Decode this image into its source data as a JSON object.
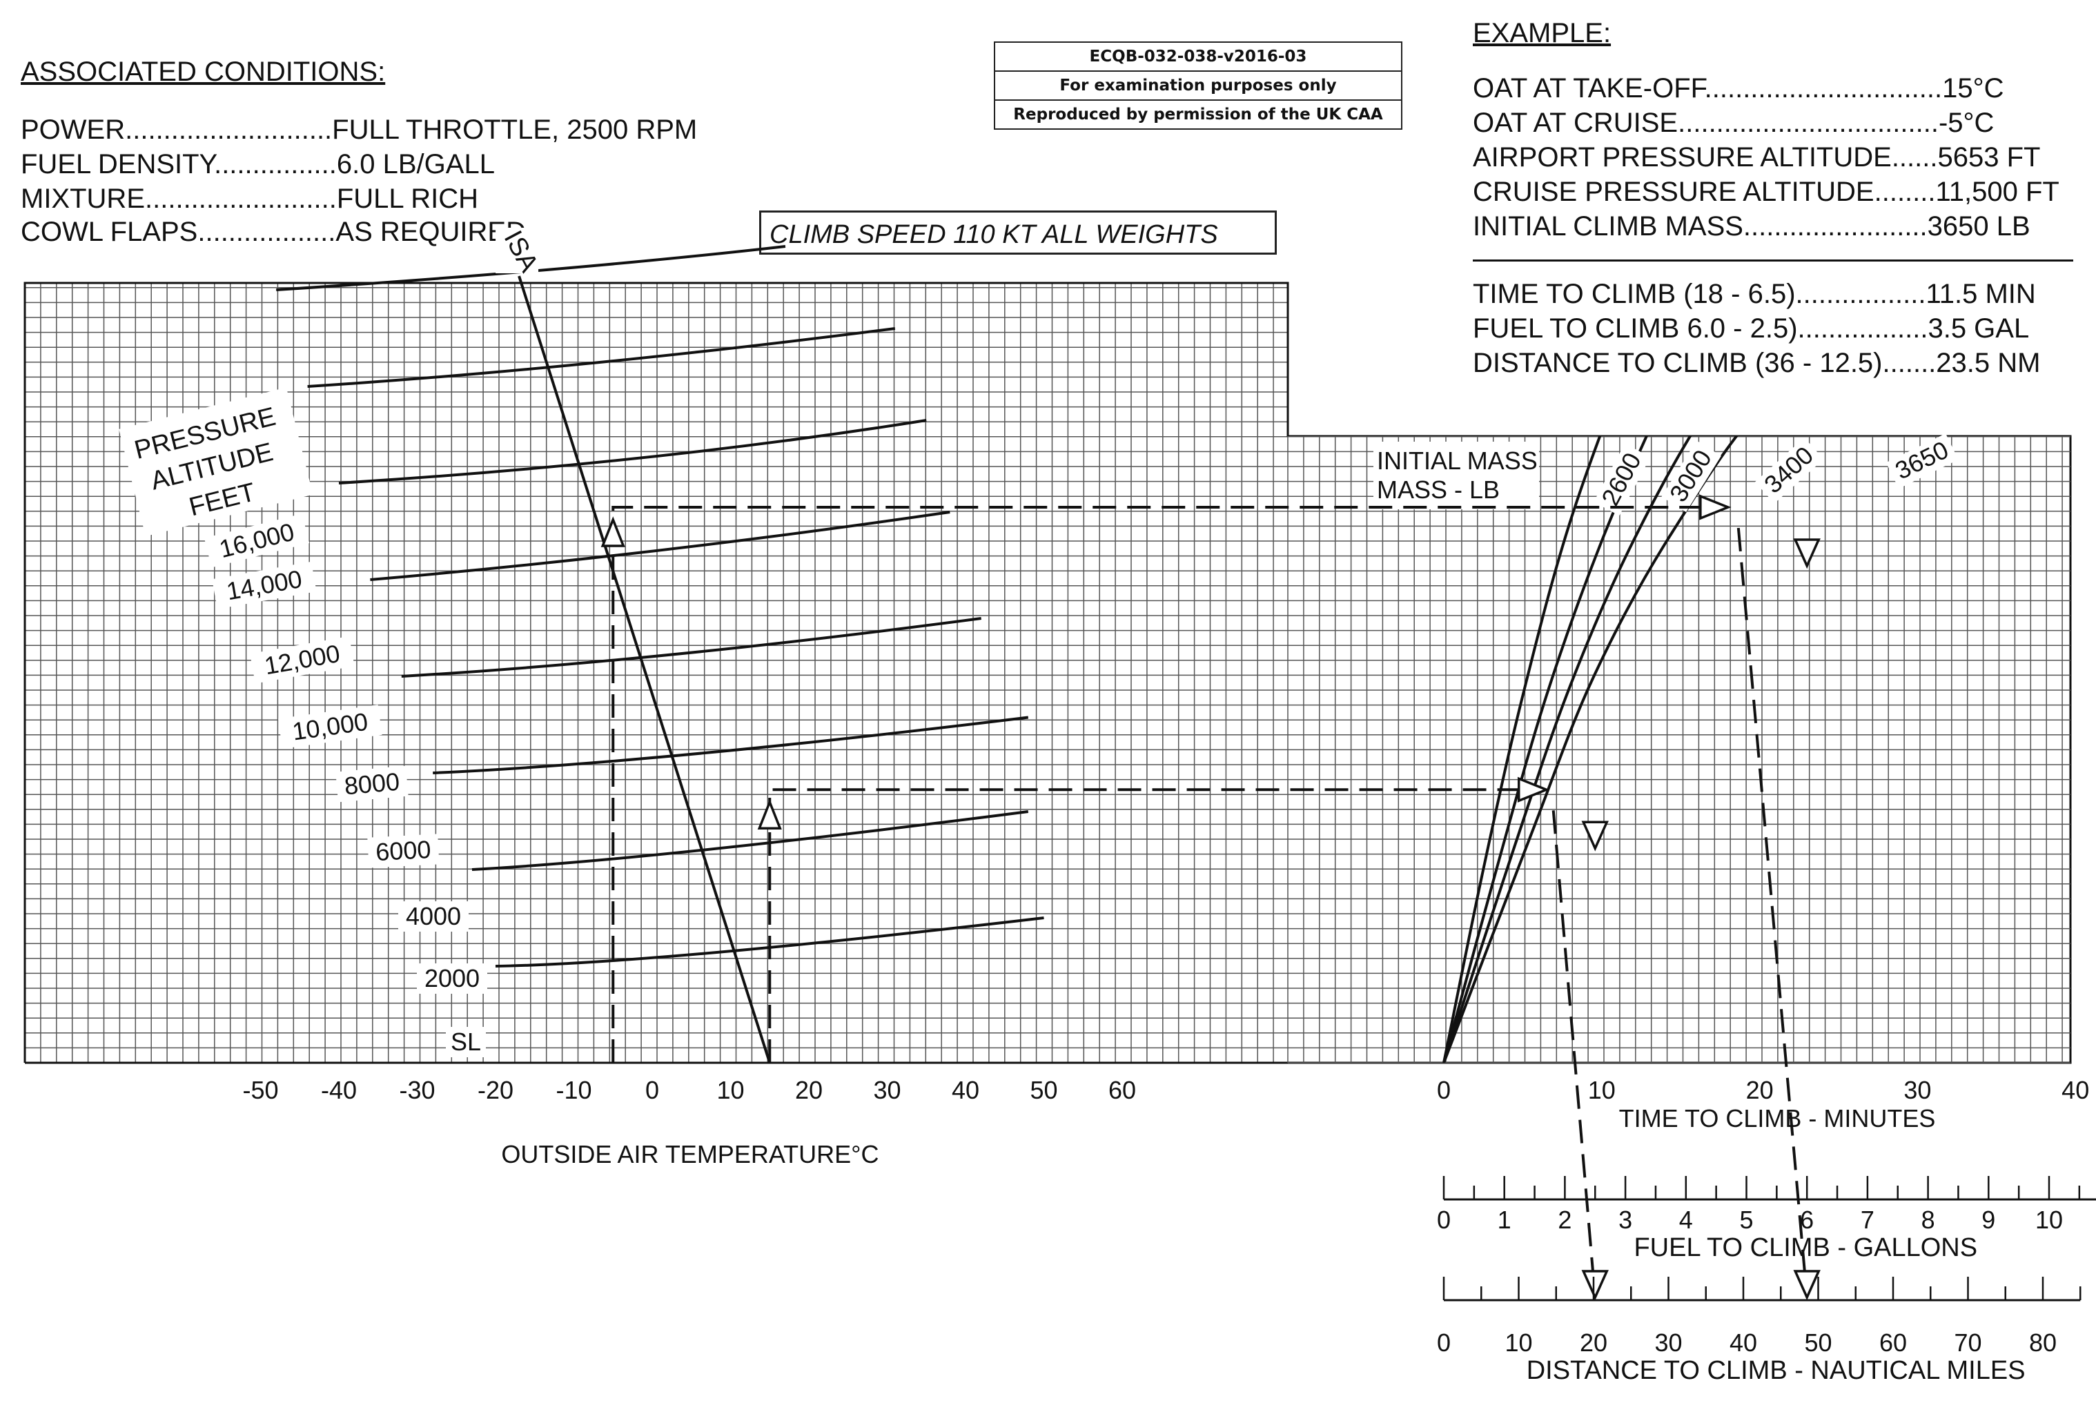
{
  "associated_conditions": {
    "title": "ASSOCIATED CONDITIONS:",
    "lines": [
      "POWER...........................FULL THROTTLE,  2500 RPM",
      "FUEL DENSITY................6.0 LB/GALL",
      "MIXTURE.........................FULL RICH",
      "COWL FLAPS..................AS REQUIRED"
    ]
  },
  "stamp": {
    "code": "ECQB-032-038-v2016-03",
    "line2": "For examination purposes only",
    "line3": "Reproduced by permission of the UK CAA"
  },
  "climb_speed": "CLIMB SPEED  110 KT ALL WEIGHTS",
  "example": {
    "title": "EXAMPLE:",
    "lines": [
      "OAT AT TAKE-OFF...............................15°C",
      "OAT AT CRUISE..................................-5°C",
      "AIRPORT PRESSURE ALTITUDE......5653 FT",
      "CRUISE PRESSURE ALTITUDE........11,500 FT",
      "INITIAL CLIMB MASS........................3650 LB"
    ],
    "results": [
      "TIME TO CLIMB (18 - 6.5).................11.5 MIN",
      "FUEL TO CLIMB 6.0 - 2.5).................3.5 GAL",
      "DISTANCE TO CLIMB (36 - 12.5).......23.5 NM"
    ]
  },
  "colors": {
    "ink": "#111111",
    "grid": "#555555",
    "background": "#ffffff"
  },
  "chart_data": [
    {
      "type": "line",
      "name": "left-panel",
      "ylabel": "PRESSURE ALTITUDE FEET",
      "xlabel": "OUTSIDE AIR TEMPERATURE°C",
      "x_ticks": [
        "-50",
        "-40",
        "-30",
        "-20",
        "-10",
        "0",
        "10",
        "20",
        "30",
        "40",
        "50",
        "60"
      ],
      "xlim": [
        -50,
        60
      ],
      "altitude_labels": [
        "16,000",
        "14,000",
        "12,000",
        "10,000",
        "8000",
        "6000",
        "4000",
        "2000",
        "SL"
      ],
      "isa_label": "ISA",
      "isa_line": [
        {
          "oat": -17,
          "alt": 16000
        },
        {
          "oat": 15,
          "alt": 0
        }
      ],
      "altitude_lines": [
        {
          "alt": 16000,
          "points": [
            [
              -48,
              16000
            ],
            [
              -10,
              16400
            ],
            [
              17,
              16900
            ]
          ]
        },
        {
          "alt": 14000,
          "points": [
            [
              -44,
              14000
            ],
            [
              -10,
              14350
            ],
            [
              31,
              15200
            ]
          ]
        },
        {
          "alt": 12000,
          "points": [
            [
              -40,
              12000
            ],
            [
              0,
              12400
            ],
            [
              35,
              13300
            ]
          ]
        },
        {
          "alt": 10000,
          "points": [
            [
              -36,
              10000
            ],
            [
              0,
              10500
            ],
            [
              38,
              11400
            ]
          ]
        },
        {
          "alt": 8000,
          "points": [
            [
              -32,
              8000
            ],
            [
              0,
              8300
            ],
            [
              42,
              9200
            ]
          ]
        },
        {
          "alt": 6000,
          "points": [
            [
              -28,
              6000
            ],
            [
              0,
              6200
            ],
            [
              48,
              7150
            ]
          ]
        },
        {
          "alt": 4000,
          "points": [
            [
              -23,
              4000
            ],
            [
              0,
              4200
            ],
            [
              48,
              5200
            ]
          ]
        },
        {
          "alt": 2000,
          "points": [
            [
              -20,
              2000
            ],
            [
              0,
              2050
            ],
            [
              50,
              3000
            ]
          ]
        }
      ],
      "example_paths": [
        {
          "oat": -5,
          "alt_from": 0,
          "alt_to": 11500
        },
        {
          "oat": 15,
          "alt_from": 0,
          "alt_to": 5653
        }
      ]
    },
    {
      "type": "line",
      "name": "right-panel",
      "legend_title": "INITIAL MASS - LB",
      "xlabel": "TIME  TO CLIMB - MINUTES",
      "x_ticks": [
        "0",
        "10",
        "20",
        "30",
        "40"
      ],
      "xlim": [
        0,
        40
      ],
      "series": [
        {
          "name": "2600",
          "points": [
            [
              0,
              0
            ],
            [
              2.5,
              4000
            ],
            [
              5,
              7600
            ],
            [
              8,
              11200
            ],
            [
              12,
              14800
            ],
            [
              14.5,
              16800
            ]
          ]
        },
        {
          "name": "3000",
          "points": [
            [
              0,
              0
            ],
            [
              3.5,
              4200
            ],
            [
              6.5,
              7600
            ],
            [
              10,
              10800
            ],
            [
              14,
              13800
            ],
            [
              18.5,
              16800
            ]
          ]
        },
        {
          "name": "3400",
          "points": [
            [
              0,
              0
            ],
            [
              4.5,
              4500
            ],
            [
              8,
              7800
            ],
            [
              12,
              10800
            ],
            [
              17,
              13700
            ],
            [
              24,
              16800
            ]
          ]
        },
        {
          "name": "3650",
          "points": [
            [
              0,
              0
            ],
            [
              5.5,
              4700
            ],
            [
              9.5,
              8000
            ],
            [
              14.5,
              11000
            ],
            [
              21,
              13900
            ],
            [
              30,
              16000
            ],
            [
              40,
              16800
            ]
          ]
        }
      ],
      "example_points": [
        {
          "time": 6.5,
          "alt": 5653
        },
        {
          "time": 18,
          "alt": 11500
        }
      ]
    },
    {
      "type": "scale",
      "name": "fuel-scale",
      "xlabel": "FUEL TO CLIMB - GALLONS",
      "ticks": [
        "0",
        "1",
        "2",
        "3",
        "4",
        "5",
        "6",
        "7",
        "8",
        "9",
        "10",
        "11"
      ],
      "range": [
        0,
        11.5
      ],
      "example_values": [
        2.5,
        6.0
      ]
    },
    {
      "type": "scale",
      "name": "distance-scale",
      "xlabel": "DISTANCE TO CLIMB - NAUTICAL MILES",
      "ticks": [
        "0",
        "10",
        "20",
        "30",
        "40",
        "50",
        "60",
        "70",
        "80"
      ],
      "range": [
        0,
        85
      ],
      "example_values": [
        12.5,
        36
      ]
    }
  ]
}
